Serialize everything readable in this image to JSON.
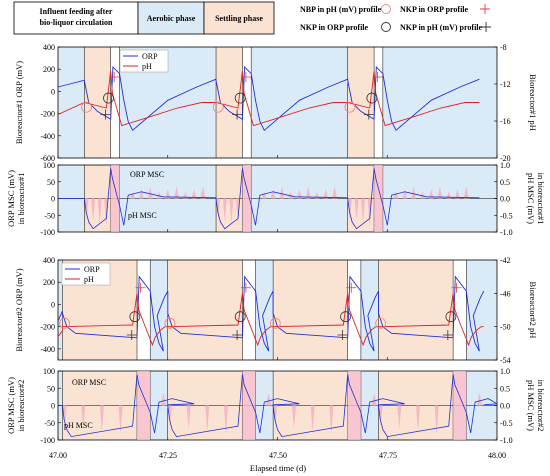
{
  "header": {
    "phases": [
      "Influent feeding after bio-liquor circulation",
      "Aerobic phase",
      "Settling phase"
    ],
    "legend": [
      {
        "label": "NBP in pH (mV) profile",
        "marker": "circle",
        "color": "#e57373"
      },
      {
        "label": "NKP in ORP profile",
        "marker": "plus",
        "color": "#e53935"
      },
      {
        "label": "NKP in ORP profile",
        "marker": "circle",
        "color": "#333333"
      },
      {
        "label": "NKP in pH (mV) profile",
        "marker": "plus",
        "color": "#333333"
      }
    ]
  },
  "colors": {
    "orp": "#1f2fd6",
    "ph": "#e02020",
    "aerobic_bg": "#dbeaf7",
    "feeding_bg": "#fbe3d3",
    "msc_fill": "#f5b8c4",
    "nbp": "#f08080",
    "nkp": "#333333"
  },
  "xaxis": {
    "label": "Elapsed time (d)",
    "ticks": [
      "47.00",
      "47.25",
      "47.50",
      "47.75",
      "48.00"
    ],
    "range": [
      47.0,
      48.0
    ]
  },
  "chart_data": [
    {
      "type": "line",
      "title": "",
      "ylabel": "Bioreactor#1 ORP (mV)",
      "y2label": "Bioreactor#1 pH",
      "ylim": [
        -600,
        400
      ],
      "y2lim": [
        -20,
        -8
      ],
      "yticks": [
        "400",
        "200",
        "0",
        "-200",
        "-400",
        "-600"
      ],
      "y2ticks": [
        "-8",
        "-12",
        "-16",
        "-20"
      ],
      "legend_placement": "top-center",
      "series": [
        {
          "name": "ORP",
          "axis": "left"
        },
        {
          "name": "pH",
          "axis": "right"
        }
      ],
      "cycle_starts": [
        47.06,
        47.36,
        47.66,
        47.96
      ],
      "feeding_end": [
        47.12,
        47.42,
        47.72
      ],
      "settling_end": [
        47.14,
        47.44,
        47.74
      ]
    },
    {
      "type": "area",
      "ylabel": "ORP MSC (mV) in bioreactor#1",
      "y2label": "pH MSC (mV) in bioreactor#1",
      "ylim": [
        -100,
        100
      ],
      "y2lim": [
        -1.0,
        1.0
      ],
      "yticks": [
        "100",
        "50",
        "0",
        "-50",
        "-100"
      ],
      "y2ticks": [
        "1.0",
        "0.5",
        "0.0",
        "-0.5",
        "-1.0"
      ],
      "annotations": [
        "ORP MSC",
        "pH MSC"
      ]
    },
    {
      "type": "line",
      "ylabel": "Bioreactor#2 ORP (mV)",
      "y2label": "Bioreactor#2 pH",
      "ylim": [
        -500,
        400
      ],
      "y2lim": [
        -54,
        -42
      ],
      "yticks": [
        "400",
        "200",
        "0",
        "-200",
        "-400"
      ],
      "y2ticks": [
        "-42",
        "-46",
        "-50",
        "-54"
      ],
      "legend_placement": "top-left",
      "series": [
        {
          "name": "ORP",
          "axis": "left"
        },
        {
          "name": "pH",
          "axis": "right"
        }
      ],
      "cycle_starts": [
        47.01,
        47.25,
        47.49,
        47.73,
        47.97
      ],
      "feeding_end": [
        47.18,
        47.42,
        47.66,
        47.9
      ],
      "settling_end": [
        47.21,
        47.45,
        47.69,
        47.93
      ]
    },
    {
      "type": "area",
      "ylabel": "ORP MSC (mV) in bioreactor#2",
      "y2label": "pH MSC (mV) in bioreactor#2",
      "ylim": [
        -100,
        100
      ],
      "y2lim": [
        -1.0,
        1.0
      ],
      "yticks": [
        "100",
        "50",
        "0",
        "-50",
        "-100"
      ],
      "y2ticks": [
        "1.0",
        "0.5",
        "0.0",
        "-0.5",
        "-1.0"
      ],
      "annotations": [
        "ORP MSC",
        "pH MSC"
      ]
    }
  ]
}
